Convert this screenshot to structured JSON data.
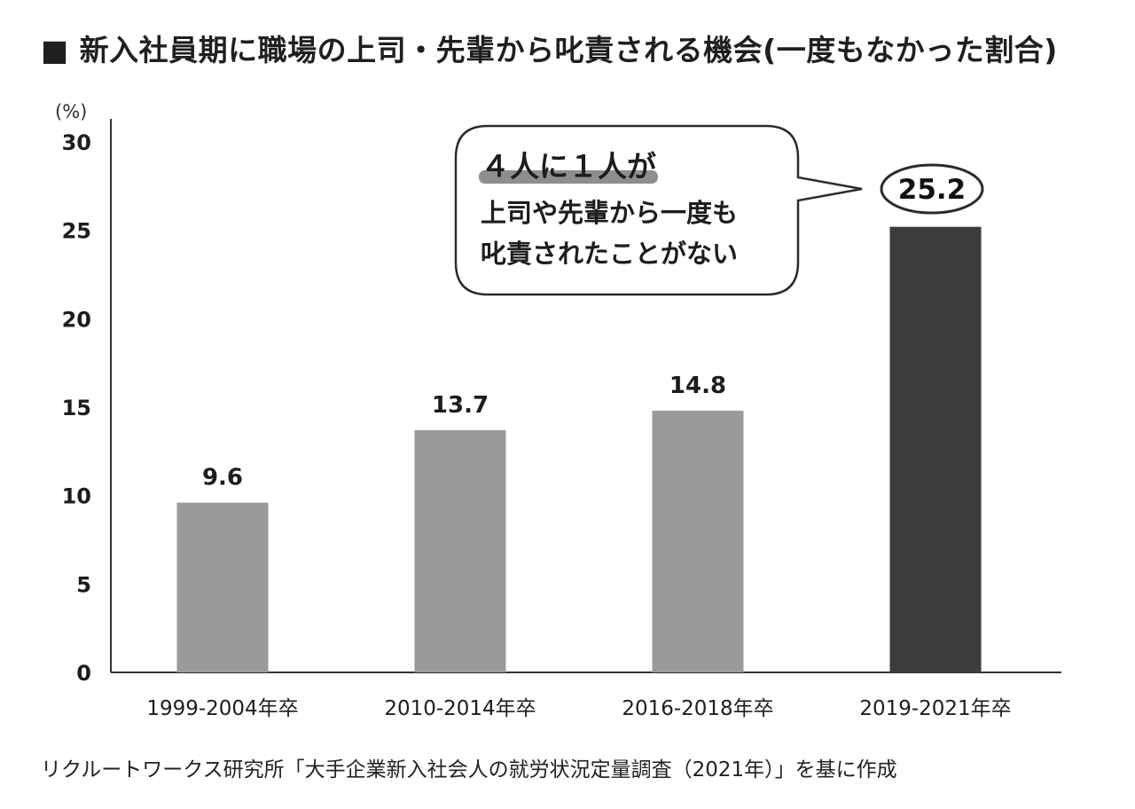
{
  "title": "■ 新入社員期に職場の上司・先輩から叱責される機会(一度もなかった割合)",
  "source": "リクルートワークス研究所「大手企業新入社会人の就労状況定量調査（2021年）」を基に作成",
  "callout": {
    "line1": "４人に１人が",
    "line2": "上司や先輩から一度も",
    "line3": "叱責されたことがない"
  },
  "colors": {
    "bar_default": "#9a9a9a",
    "bar_highlight": "#3c3c3c",
    "axis": "#333333",
    "callout_underline": "#8e8e8e"
  },
  "chart_data": {
    "type": "bar",
    "title": "新入社員期に職場の上司・先輩から叱責される機会(一度もなかった割合)",
    "ylabel": "(%)",
    "xlabel": "",
    "ylim": [
      0,
      30
    ],
    "yticks": [
      0,
      5,
      10,
      15,
      20,
      25,
      30
    ],
    "grid": false,
    "categories": [
      "1999-2004年卒",
      "2010-2014年卒",
      "2016-2018年卒",
      "2019-2021年卒"
    ],
    "values": [
      9.6,
      13.7,
      14.8,
      25.2
    ],
    "data_labels": [
      "9.6",
      "13.7",
      "14.8",
      "25.2"
    ],
    "highlight_index": 3
  }
}
